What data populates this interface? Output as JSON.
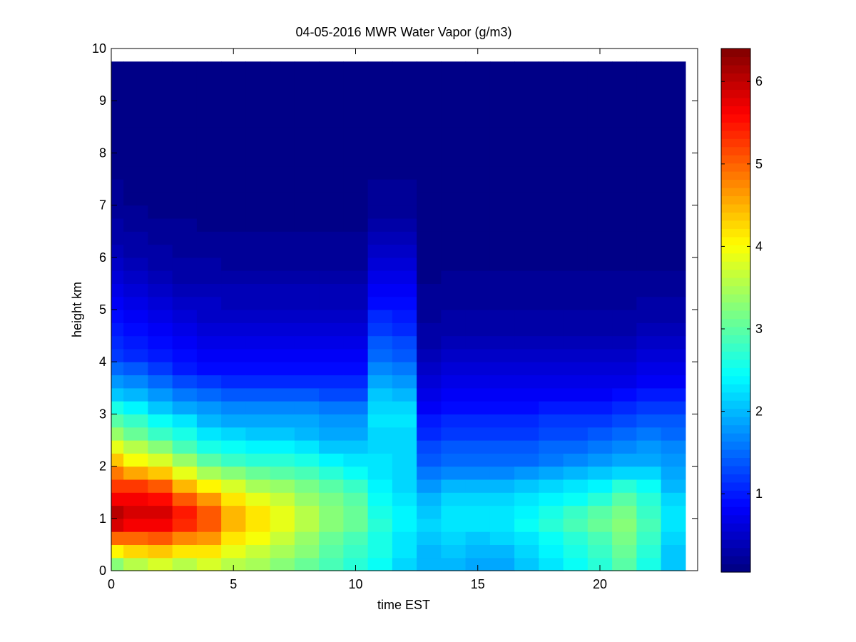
{
  "chart_data": {
    "type": "heatmap",
    "title": "04-05-2016 MWR Water Vapor (g/m3)",
    "xlabel": "time EST",
    "ylabel": "height km",
    "xlim": [
      0,
      24
    ],
    "ylim": [
      0,
      10
    ],
    "xticks": [
      "0",
      "5",
      "10",
      "15",
      "20"
    ],
    "yticks": [
      "0",
      "1",
      "2",
      "3",
      "4",
      "5",
      "6",
      "7",
      "8",
      "9",
      "10"
    ],
    "colorbar": {
      "colormap": "jet",
      "range": [
        0.05,
        6.4
      ],
      "ticks": [
        "1",
        "2",
        "3",
        "4",
        "5",
        "6"
      ]
    },
    "grid": false,
    "x": [
      0.25,
      1.0,
      2.0,
      3.0,
      4.0,
      5.0,
      6.0,
      7.0,
      8.0,
      9.0,
      10.0,
      11.0,
      12.0,
      13.0,
      14.0,
      15.0,
      16.0,
      17.0,
      18.0,
      19.0,
      20.0,
      21.0,
      22.0,
      23.0
    ],
    "x_edges": [
      0.0,
      0.5,
      1.5,
      2.5,
      3.5,
      4.5,
      5.5,
      6.5,
      7.5,
      8.5,
      9.5,
      10.5,
      11.5,
      12.5,
      13.5,
      14.5,
      15.5,
      16.5,
      17.5,
      18.5,
      19.5,
      20.5,
      21.5,
      22.5,
      23.5
    ],
    "heights_km": [
      0.0,
      1.0,
      1.5,
      2.0,
      2.5,
      3.0,
      3.5,
      4.0,
      5.0,
      6.0,
      7.0,
      8.0,
      9.75
    ],
    "profiles": [
      [
        2.8,
        6.3,
        5.5,
        4.6,
        3.6,
        2.8,
        1.9,
        1.3,
        0.8,
        0.4,
        0.2,
        0.1,
        0.05
      ],
      [
        3.2,
        6.0,
        5.6,
        4.2,
        3.3,
        2.6,
        1.8,
        1.2,
        0.7,
        0.35,
        0.15,
        0.08,
        0.05
      ],
      [
        3.4,
        6.0,
        5.4,
        4.0,
        3.0,
        2.3,
        1.6,
        1.0,
        0.6,
        0.3,
        0.12,
        0.06,
        0.05
      ],
      [
        3.3,
        5.7,
        4.8,
        3.6,
        2.7,
        2.1,
        1.4,
        0.9,
        0.5,
        0.25,
        0.1,
        0.06,
        0.05
      ],
      [
        3.5,
        5.3,
        4.4,
        3.2,
        2.4,
        1.9,
        1.3,
        0.8,
        0.5,
        0.22,
        0.1,
        0.05,
        0.05
      ],
      [
        3.4,
        4.6,
        4.0,
        3.0,
        2.3,
        1.8,
        1.2,
        0.8,
        0.45,
        0.2,
        0.1,
        0.05,
        0.05
      ],
      [
        3.3,
        4.3,
        3.7,
        2.9,
        2.2,
        1.8,
        1.2,
        0.8,
        0.45,
        0.2,
        0.1,
        0.05,
        0.05
      ],
      [
        3.2,
        4.0,
        3.5,
        2.8,
        2.2,
        1.8,
        1.2,
        0.8,
        0.45,
        0.2,
        0.1,
        0.05,
        0.05
      ],
      [
        3.0,
        3.6,
        3.3,
        2.7,
        2.1,
        1.8,
        1.2,
        0.8,
        0.45,
        0.2,
        0.1,
        0.05,
        0.05
      ],
      [
        2.8,
        3.3,
        3.1,
        2.5,
        2.0,
        1.7,
        1.2,
        0.8,
        0.45,
        0.2,
        0.1,
        0.05,
        0.05
      ],
      [
        2.6,
        3.1,
        2.9,
        2.4,
        2.0,
        1.7,
        1.2,
        0.8,
        0.45,
        0.2,
        0.1,
        0.05,
        0.05
      ],
      [
        2.5,
        2.7,
        2.4,
        2.3,
        2.2,
        2.3,
        2.0,
        1.6,
        1.0,
        0.5,
        0.2,
        0.08,
        0.05
      ],
      [
        2.2,
        2.4,
        2.2,
        2.2,
        2.2,
        2.3,
        1.9,
        1.5,
        0.9,
        0.5,
        0.2,
        0.08,
        0.05
      ],
      [
        1.9,
        2.2,
        1.9,
        1.5,
        1.2,
        0.9,
        0.6,
        0.4,
        0.2,
        0.1,
        0.05,
        0.05,
        0.05
      ],
      [
        1.9,
        2.3,
        2.1,
        1.5,
        1.3,
        1.0,
        0.7,
        0.5,
        0.25,
        0.1,
        0.05,
        0.05,
        0.05
      ],
      [
        1.8,
        2.3,
        2.1,
        1.5,
        1.3,
        1.0,
        0.7,
        0.5,
        0.25,
        0.1,
        0.05,
        0.05,
        0.05
      ],
      [
        1.8,
        2.4,
        2.1,
        1.5,
        1.3,
        1.0,
        0.7,
        0.5,
        0.25,
        0.1,
        0.05,
        0.05,
        0.05
      ],
      [
        2.0,
        2.5,
        2.2,
        1.6,
        1.3,
        1.0,
        0.7,
        0.5,
        0.25,
        0.1,
        0.05,
        0.05,
        0.05
      ],
      [
        2.2,
        2.7,
        2.3,
        1.7,
        1.4,
        1.1,
        0.75,
        0.5,
        0.25,
        0.1,
        0.05,
        0.05,
        0.05
      ],
      [
        2.4,
        2.9,
        2.4,
        1.8,
        1.4,
        1.1,
        0.75,
        0.5,
        0.25,
        0.1,
        0.05,
        0.05,
        0.05
      ],
      [
        2.6,
        3.1,
        2.6,
        1.9,
        1.5,
        1.1,
        0.75,
        0.5,
        0.25,
        0.1,
        0.05,
        0.05,
        0.05
      ],
      [
        2.9,
        3.3,
        2.9,
        2.0,
        1.6,
        1.2,
        0.8,
        0.5,
        0.25,
        0.1,
        0.05,
        0.05,
        0.05
      ],
      [
        2.5,
        2.9,
        2.6,
        2.0,
        1.7,
        1.3,
        0.9,
        0.6,
        0.3,
        0.12,
        0.05,
        0.05,
        0.05
      ],
      [
        2.0,
        2.3,
        2.1,
        1.8,
        1.6,
        1.3,
        0.9,
        0.6,
        0.3,
        0.12,
        0.05,
        0.05,
        0.05
      ]
    ]
  }
}
